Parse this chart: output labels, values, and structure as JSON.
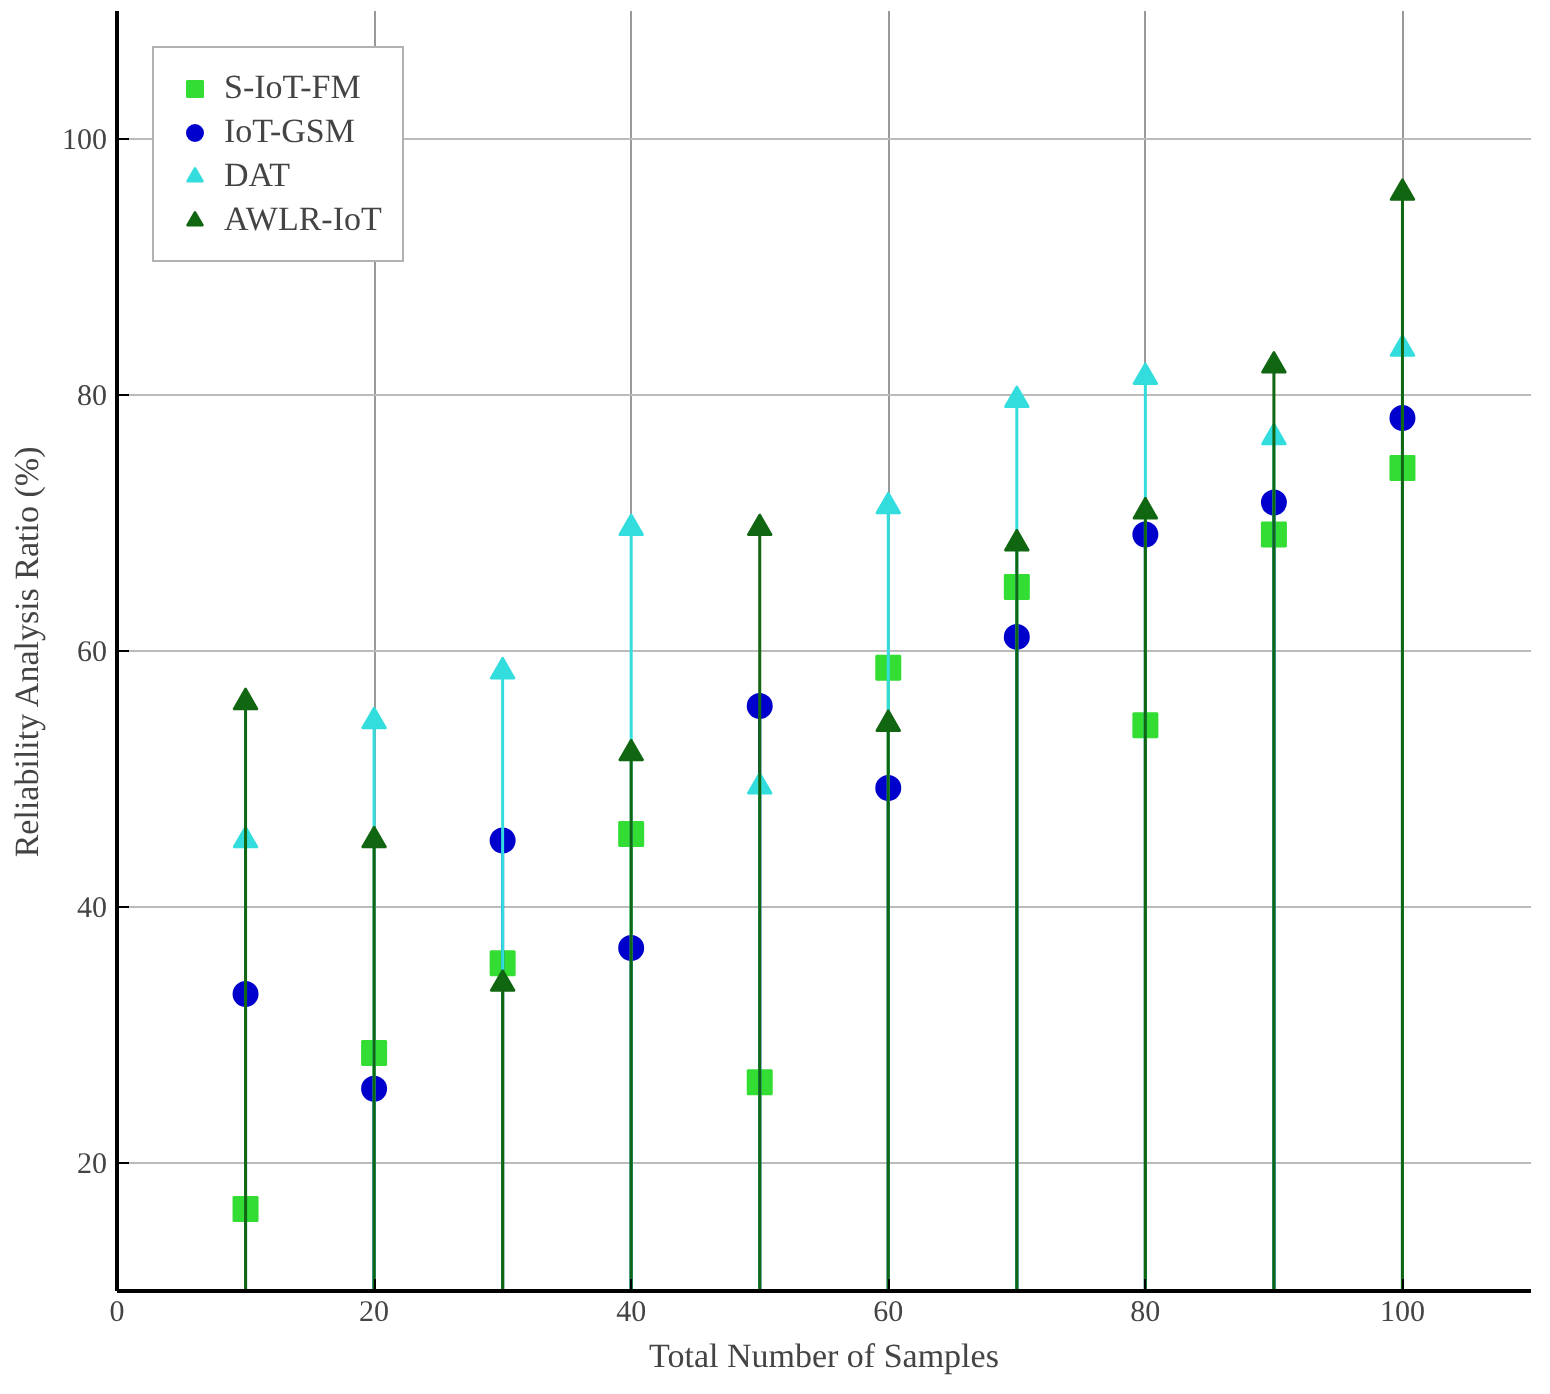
{
  "chart_data": {
    "type": "lollipop",
    "xlabel": "Total Number of Samples",
    "ylabel": "Reliability Analysis Ratio (%)",
    "x": [
      10,
      20,
      30,
      40,
      50,
      60,
      70,
      80,
      90,
      100
    ],
    "series": [
      {
        "name": "S-IoT-FM",
        "color": "#33dd33",
        "marker": "square",
        "values": [
          16.4,
          28.6,
          35.6,
          45.7,
          26.3,
          58.7,
          65.0,
          54.2,
          69.1,
          74.3
        ]
      },
      {
        "name": "IoT-GSM",
        "color": "#0000cc",
        "marker": "circle",
        "values": [
          33.2,
          25.8,
          45.2,
          36.8,
          55.7,
          49.3,
          61.1,
          69.1,
          71.6,
          78.2
        ]
      },
      {
        "name": "DAT",
        "color": "#33dddd",
        "marker": "triangle",
        "values": [
          45.2,
          54.5,
          58.4,
          69.6,
          49.4,
          71.3,
          79.6,
          81.4,
          76.7,
          83.6
        ]
      },
      {
        "name": "AWLR-IoT",
        "color": "#116611",
        "marker": "triangle",
        "values": [
          56.0,
          45.2,
          34.0,
          52.0,
          69.6,
          54.3,
          68.4,
          70.9,
          82.3,
          95.8
        ]
      }
    ],
    "xlim": [
      0,
      110
    ],
    "ylim": [
      10,
      110
    ],
    "xticks": [
      0,
      20,
      40,
      60,
      80,
      100
    ],
    "yticks": [
      20,
      40,
      60,
      80,
      100
    ],
    "grid": true,
    "legend": "top left"
  }
}
